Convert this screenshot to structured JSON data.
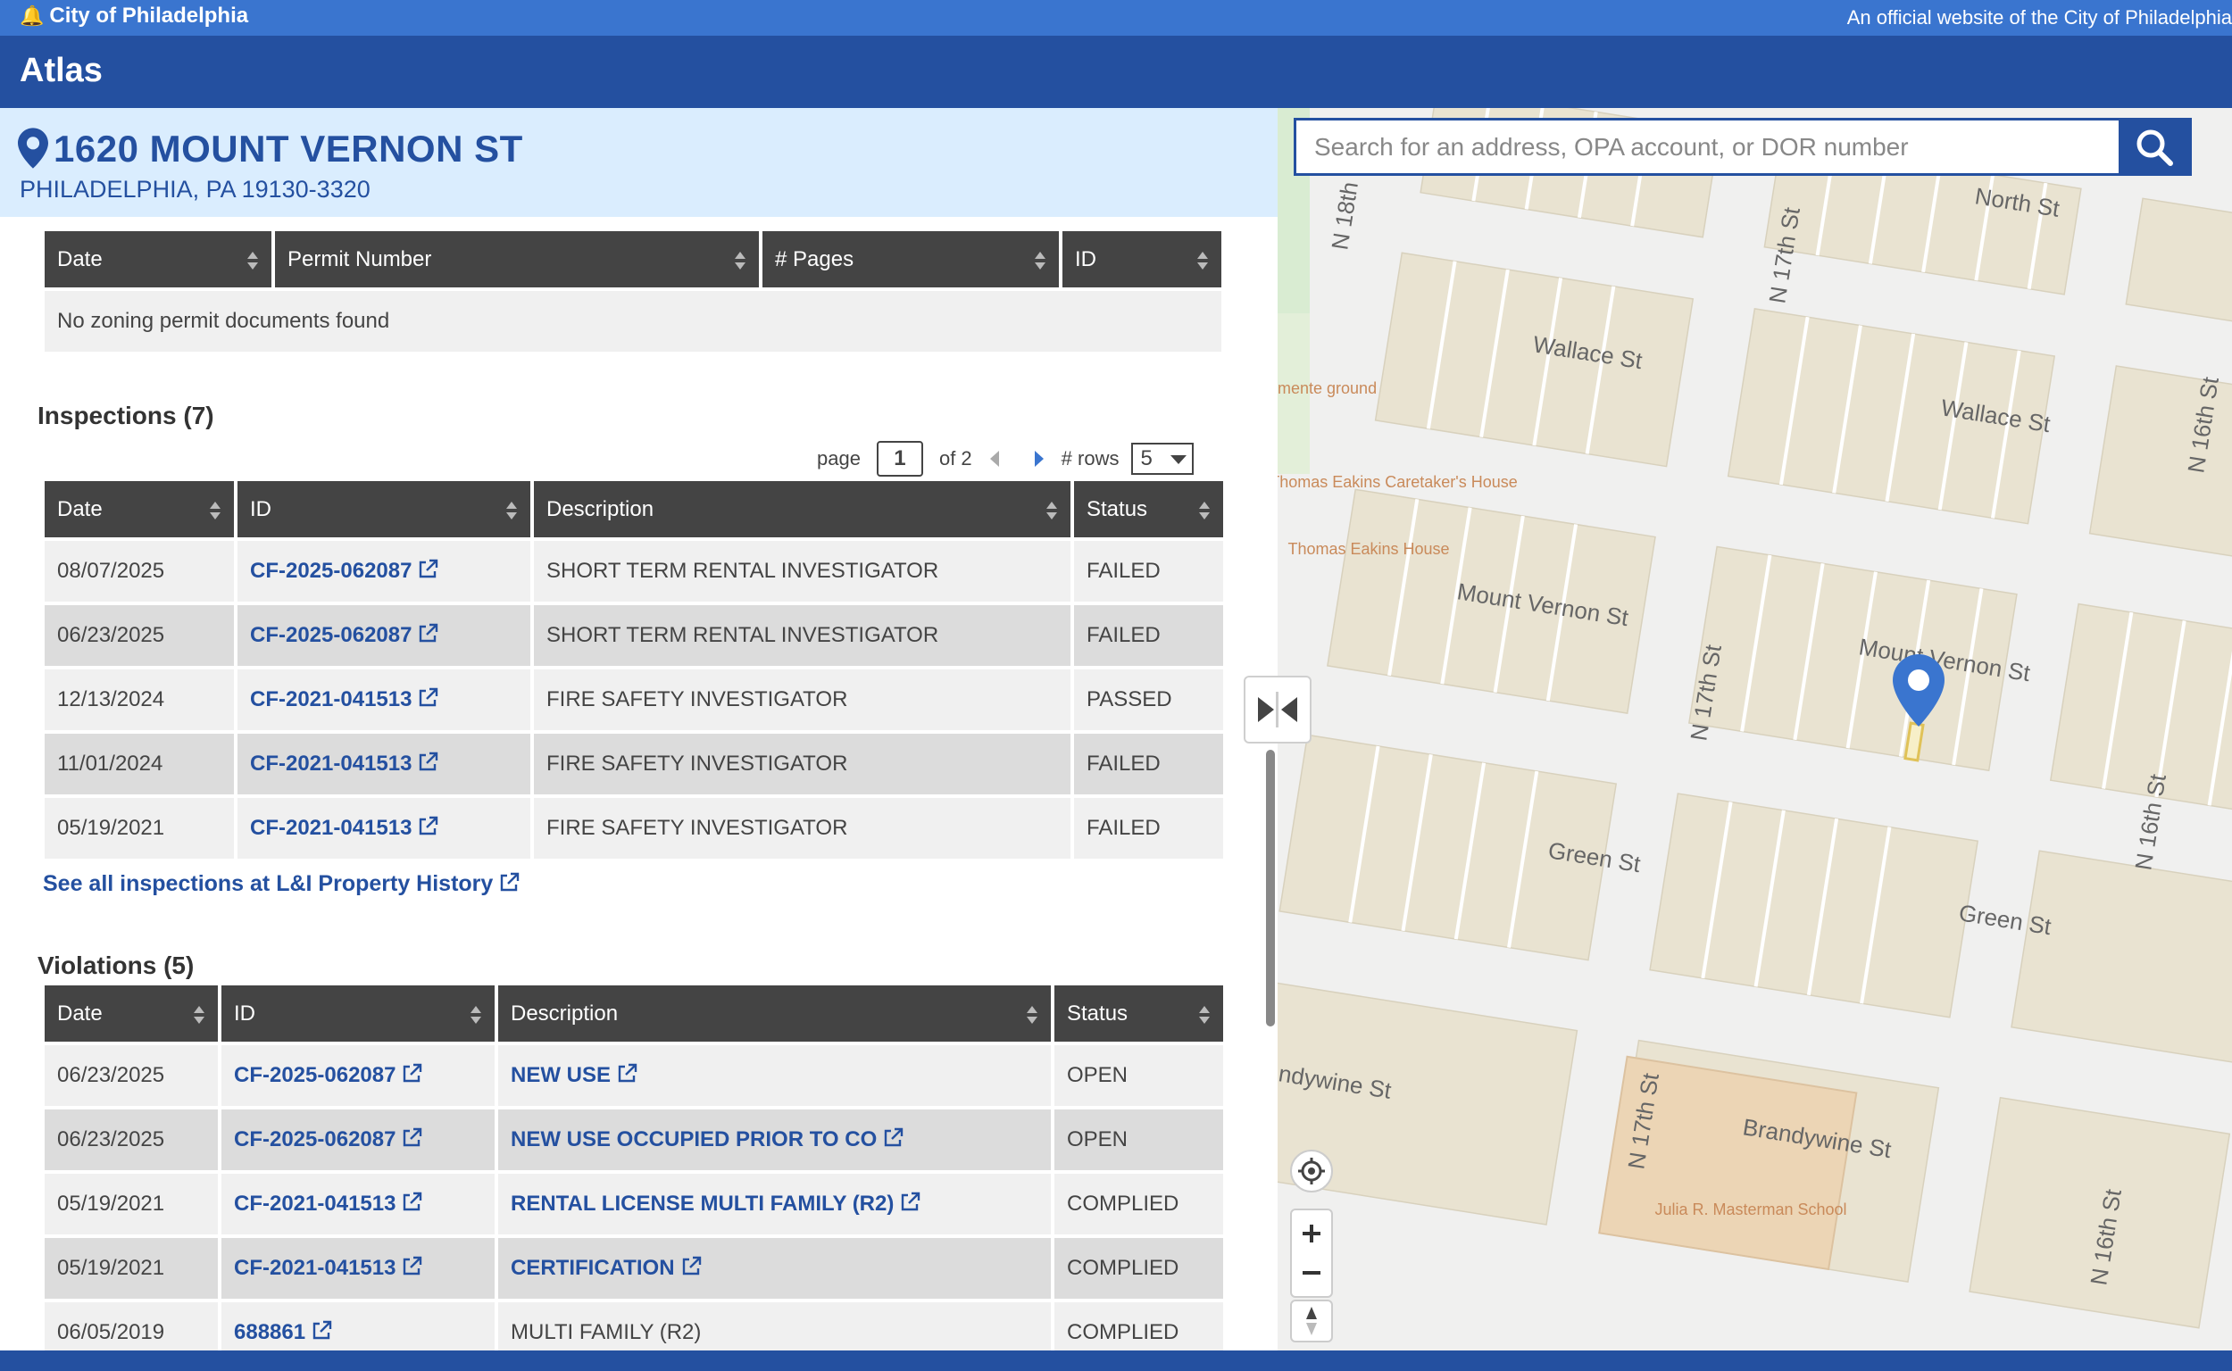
{
  "gov_bar": {
    "city": "City of Philadelphia",
    "official": "An official website of the City of Philadelphia"
  },
  "app": {
    "title": "Atlas"
  },
  "address": {
    "street": "1620 MOUNT VERNON ST",
    "city": "PHILADELPHIA, PA 19130-3320"
  },
  "search": {
    "placeholder": "Search for an address, OPA account, or DOR number"
  },
  "zoning_docs": {
    "columns": [
      "Date",
      "Permit Number",
      "# Pages",
      "ID"
    ],
    "empty": "No zoning permit documents found"
  },
  "inspections": {
    "title": "Inspections (7)",
    "pager": {
      "page_label": "page",
      "page": "1",
      "of_label": "of 2",
      "rows_label": "# rows",
      "rows_value": "5"
    },
    "columns": [
      "Date",
      "ID",
      "Description",
      "Status"
    ],
    "rows": [
      {
        "date": "08/07/2025",
        "id": "CF-2025-062087",
        "description": "SHORT TERM RENTAL INVESTIGATOR",
        "status": "FAILED"
      },
      {
        "date": "06/23/2025",
        "id": "CF-2025-062087",
        "description": "SHORT TERM RENTAL INVESTIGATOR",
        "status": "FAILED"
      },
      {
        "date": "12/13/2024",
        "id": "CF-2021-041513",
        "description": "FIRE SAFETY INVESTIGATOR",
        "status": "PASSED"
      },
      {
        "date": "11/01/2024",
        "id": "CF-2021-041513",
        "description": "FIRE SAFETY INVESTIGATOR",
        "status": "FAILED"
      },
      {
        "date": "05/19/2021",
        "id": "CF-2021-041513",
        "description": "FIRE SAFETY INVESTIGATOR",
        "status": "FAILED"
      }
    ],
    "see_all": "See all inspections at L&I Property History"
  },
  "violations": {
    "title": "Violations (5)",
    "columns": [
      "Date",
      "ID",
      "Description",
      "Status"
    ],
    "rows": [
      {
        "date": "06/23/2025",
        "id": "CF-2025-062087",
        "description": "NEW USE",
        "desc_link": true,
        "status": "OPEN"
      },
      {
        "date": "06/23/2025",
        "id": "CF-2025-062087",
        "description": "NEW USE OCCUPIED PRIOR TO CO",
        "desc_link": true,
        "status": "OPEN"
      },
      {
        "date": "05/19/2021",
        "id": "CF-2021-041513",
        "description": "RENTAL LICENSE MULTI FAMILY (R2)",
        "desc_link": true,
        "status": "COMPLIED"
      },
      {
        "date": "05/19/2021",
        "id": "CF-2021-041513",
        "description": "CERTIFICATION",
        "desc_link": true,
        "status": "COMPLIED"
      },
      {
        "date": "06/05/2019",
        "id": "688861",
        "description": "MULTI FAMILY (R2)",
        "desc_link": false,
        "status": "COMPLIED"
      }
    ]
  },
  "map": {
    "streets": [
      "North St",
      "Wallace St",
      "Wallace St",
      "Mount Vernon St",
      "Mount Vernon St",
      "Green St",
      "Green St",
      "Brandywine St",
      "ndywine St",
      "N 18th St",
      "N 17th St",
      "N 17th St",
      "N 17th St",
      "N 16th St",
      "N 16th St",
      "N 16th St"
    ],
    "pois": [
      "Thomas Eakins Caretaker's House",
      "Thomas Eakins House",
      "Julia R. Masterman School",
      "mente ground"
    ],
    "accent": "#2450a0"
  }
}
